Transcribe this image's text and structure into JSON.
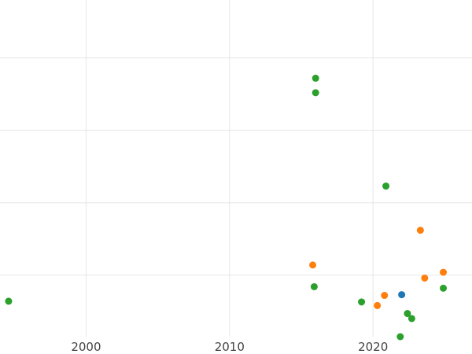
{
  "chart_data": {
    "type": "scatter",
    "title": "",
    "xlabel": "",
    "ylabel": "",
    "x_ticks": [
      2000,
      2010,
      2020
    ],
    "y_gridlines": [
      1,
      2,
      3,
      4
    ],
    "xlim": [
      1994.0,
      2026.9
    ],
    "ylim": [
      0.15,
      4.8
    ],
    "grid": true,
    "legend": "none",
    "series": [
      {
        "color": "#1f77b4",
        "points": [
          {
            "x": 2022.0,
            "y": 0.73
          }
        ]
      },
      {
        "color": "#ff7f0e",
        "points": [
          {
            "x": 2015.8,
            "y": 1.14
          },
          {
            "x": 2020.3,
            "y": 0.58
          },
          {
            "x": 2020.8,
            "y": 0.72
          },
          {
            "x": 2023.3,
            "y": 1.62
          },
          {
            "x": 2023.6,
            "y": 0.96
          },
          {
            "x": 2024.9,
            "y": 1.04
          }
        ]
      },
      {
        "color": "#2ca02c",
        "points": [
          {
            "x": 1994.6,
            "y": 0.64
          },
          {
            "x": 2015.9,
            "y": 0.84
          },
          {
            "x": 2016.0,
            "y": 3.72
          },
          {
            "x": 2016.0,
            "y": 3.52
          },
          {
            "x": 2019.2,
            "y": 0.63
          },
          {
            "x": 2020.9,
            "y": 2.23
          },
          {
            "x": 2021.9,
            "y": 0.15
          },
          {
            "x": 2022.4,
            "y": 0.47
          },
          {
            "x": 2022.7,
            "y": 0.4
          },
          {
            "x": 2024.9,
            "y": 0.82
          }
        ]
      }
    ]
  }
}
